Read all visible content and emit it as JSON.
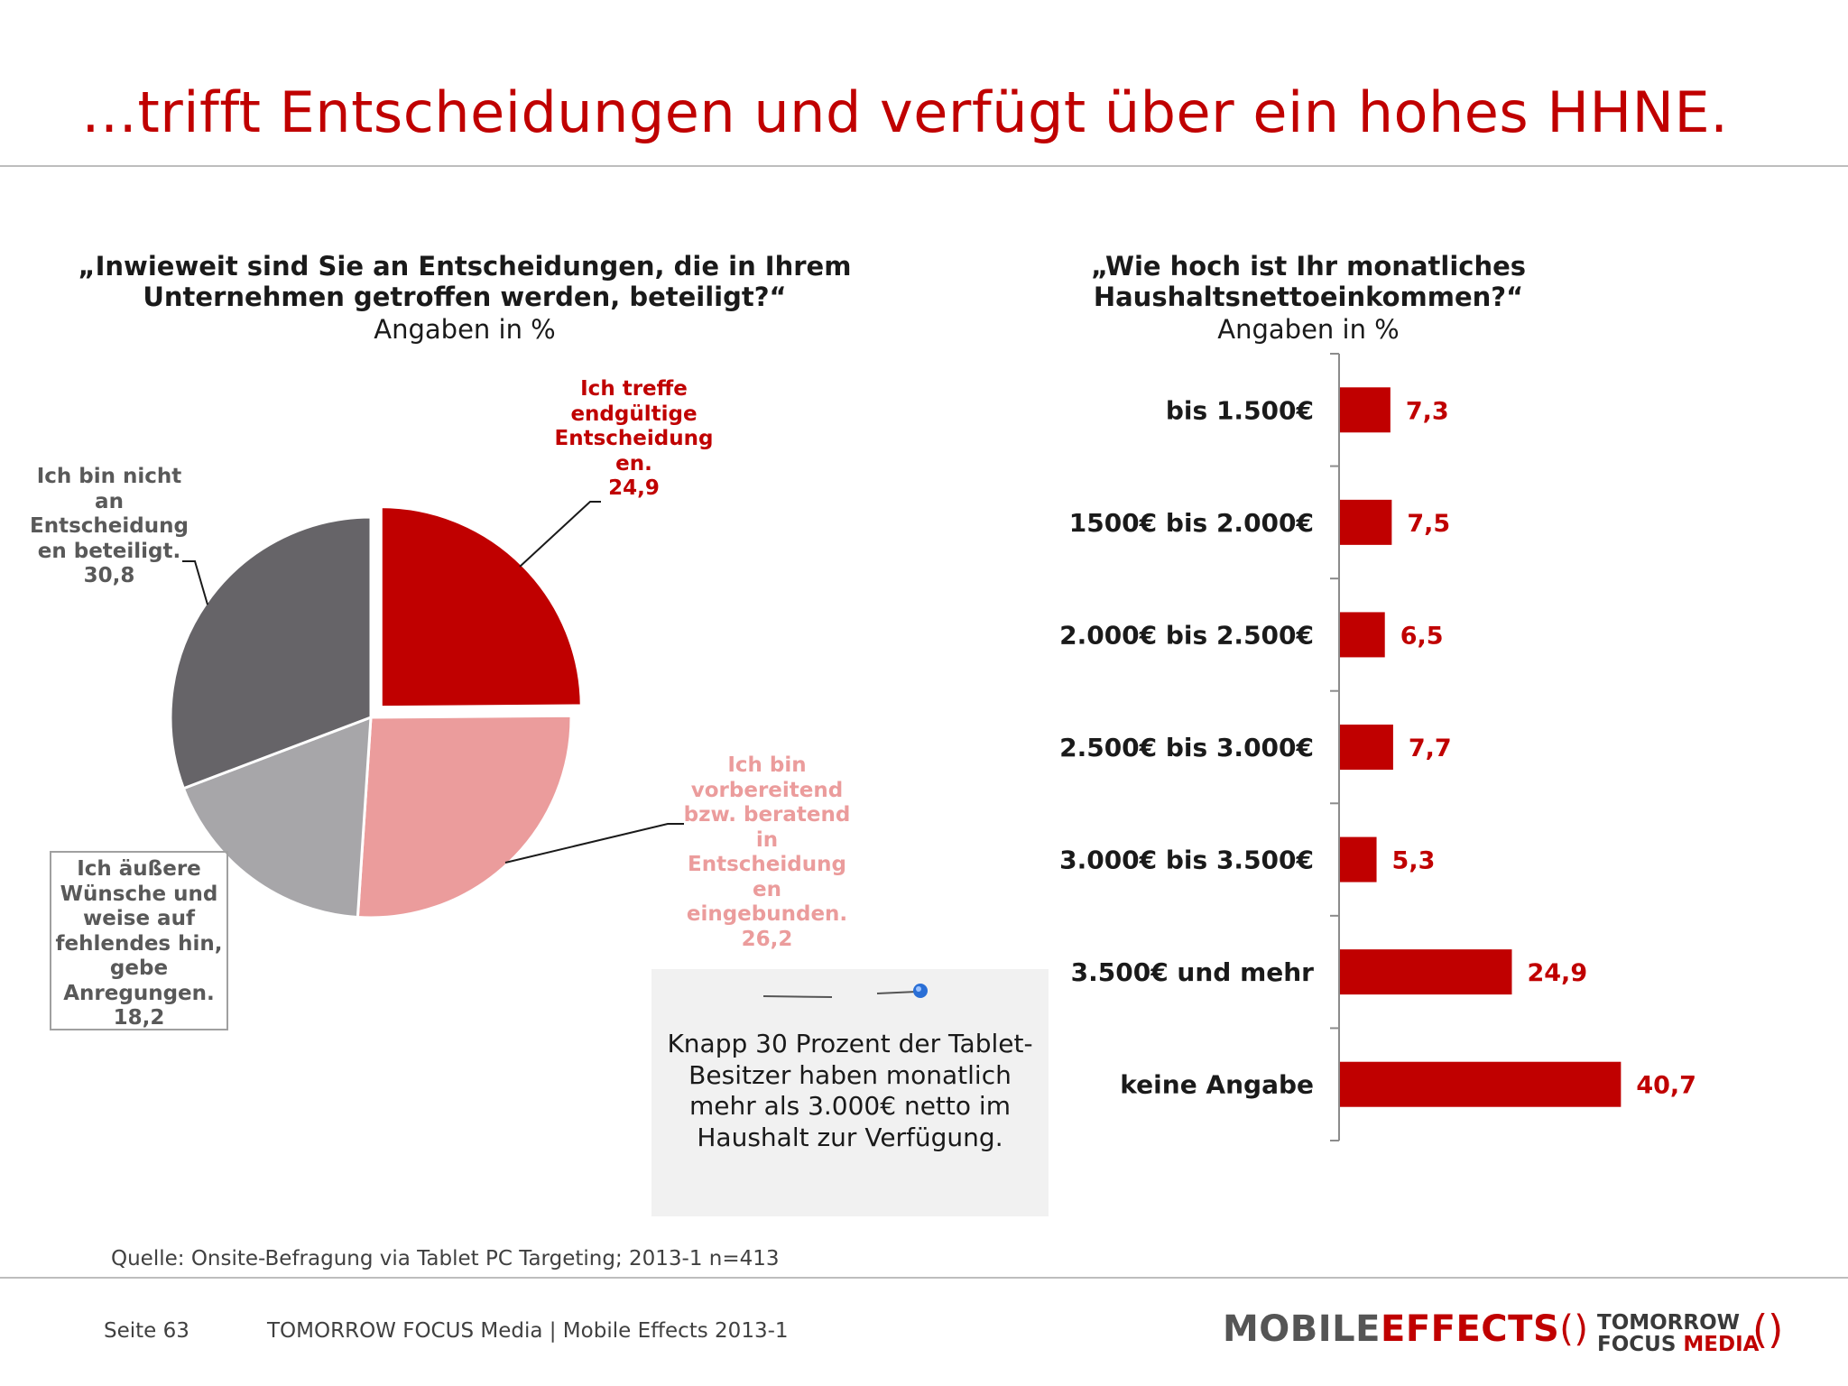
{
  "title": "…trifft Entscheidungen und verfügt über ein hohes HHNE.",
  "colors": {
    "accent": "#c00000",
    "pie": [
      "#c00000",
      "#eb9c9c",
      "#a7a6a9",
      "#666468"
    ]
  },
  "left_panel": {
    "question": "„Inwieweit sind Sie an Entscheidungen, die in Ihrem Unternehmen getroffen werden, beteiligt?“",
    "subtitle": "Angaben in %"
  },
  "right_panel": {
    "question": "„Wie hoch ist Ihr monatliches Haushaltsnettoeinkommen?“",
    "subtitle": "Angaben in %"
  },
  "chart_data": [
    {
      "type": "pie",
      "title": "„Inwieweit sind Sie an Entscheidungen, die in Ihrem Unternehmen getroffen werden, beteiligt?“",
      "subtitle": "Angaben in %",
      "slices": [
        {
          "label": "Ich treffe endgültige Entscheidungen.",
          "value": 24.9,
          "value_label": "24,9",
          "color": "#c00000",
          "exploded": true
        },
        {
          "label": "Ich bin vorbereitend bzw. beratend in Entscheidungen eingebunden.",
          "value": 26.2,
          "value_label": "26,2",
          "color": "#eb9c9c"
        },
        {
          "label": "Ich äußere Wünsche und weise auf fehlendes hin, gebe Anregungen.",
          "value": 18.2,
          "value_label": "18,2",
          "color": "#a7a6a9"
        },
        {
          "label": "Ich bin nicht an Entscheidungen beteiligt.",
          "value": 30.8,
          "value_label": "30,8",
          "color": "#666468"
        }
      ]
    },
    {
      "type": "bar",
      "orientation": "horizontal",
      "title": "„Wie hoch ist Ihr monatliches Haushaltsnettoeinkommen?“",
      "subtitle": "Angaben in %",
      "categories": [
        "bis 1.500€",
        "1500€ bis 2.000€",
        "2.000€ bis 2.500€",
        "2.500€ bis 3.000€",
        "3.000€ bis 3.500€",
        "3.500€ und mehr",
        "keine Angabe"
      ],
      "values": [
        7.3,
        7.5,
        6.5,
        7.7,
        5.3,
        24.9,
        40.7
      ],
      "value_labels": [
        "7,3",
        "7,5",
        "6,5",
        "7,7",
        "5,3",
        "24,9",
        "40,7"
      ],
      "color": "#c00000",
      "xlim": [
        0,
        50
      ]
    }
  ],
  "pie_labels": [
    {
      "lines": [
        "Ich treffe",
        "endgültige",
        "Entscheidung",
        "en.",
        "24,9"
      ]
    },
    {
      "lines": [
        "Ich bin",
        "vorbereitend",
        "bzw. beratend",
        "in",
        "Entscheidung",
        "en",
        "eingebunden.",
        "26,2"
      ]
    },
    {
      "lines": [
        "Ich äußere",
        "Wünsche und",
        "weise auf",
        "fehlendes hin,",
        "gebe",
        "Anregungen.",
        "18,2"
      ]
    },
    {
      "lines": [
        "Ich bin nicht",
        "an",
        "Entscheidung",
        "en beteiligt.",
        "30,8"
      ]
    }
  ],
  "note": {
    "text": "Knapp 30 Prozent der Tablet-Besitzer haben monatlich mehr als 3.000€ netto im Haushalt zur Verfügung.",
    "icon": "pin-icon"
  },
  "source": "Quelle: Onsite-Befragung via Tablet PC Targeting; 2013-1 n=413",
  "footer": {
    "page": "Seite 63",
    "company": "TOMORROW FOCUS Media  |  Mobile Effects 2013-1"
  },
  "logos": {
    "mobile_effects": {
      "part1": "MOBILE",
      "part2": "EFFECTS"
    },
    "tomorrow_focus": {
      "line1": "TOMORROW",
      "line2a": "FOCUS ",
      "line2b": "MEDIA"
    }
  }
}
